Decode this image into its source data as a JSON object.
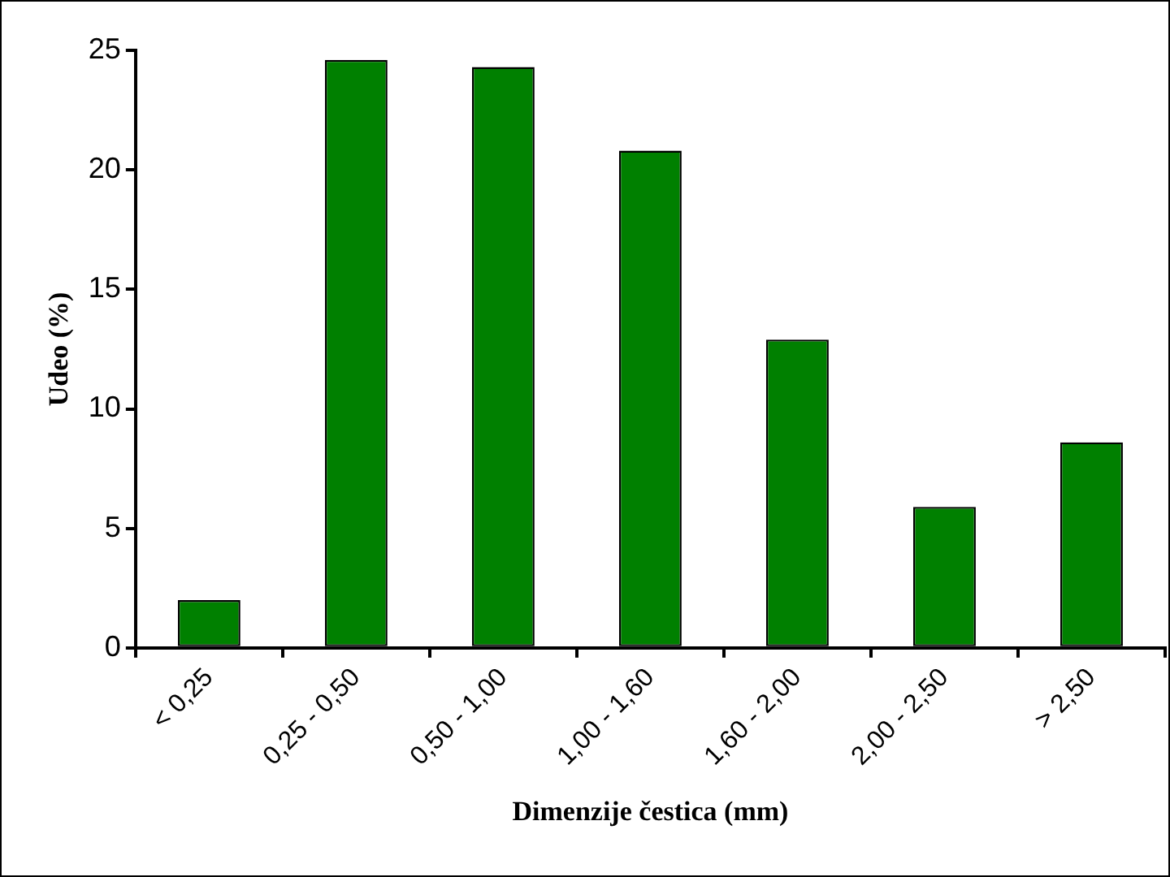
{
  "chart_data": {
    "type": "bar",
    "xlabel": "Dimenzije čestica (mm)",
    "ylabel": "Udeo (%)",
    "categories": [
      "< 0,25",
      "0,25 - 0,50",
      "0,50 - 1,00",
      "1,00 - 1,60",
      "1,60 - 2,00",
      "2,00 - 2,50",
      "> 2,50"
    ],
    "values": [
      2.0,
      24.6,
      24.3,
      20.8,
      12.9,
      5.9,
      8.6
    ],
    "color": "#008000",
    "ylim": [
      0,
      25
    ],
    "yticks": [
      0,
      5,
      10,
      15,
      20,
      25
    ],
    "grid": false,
    "legend": false
  }
}
